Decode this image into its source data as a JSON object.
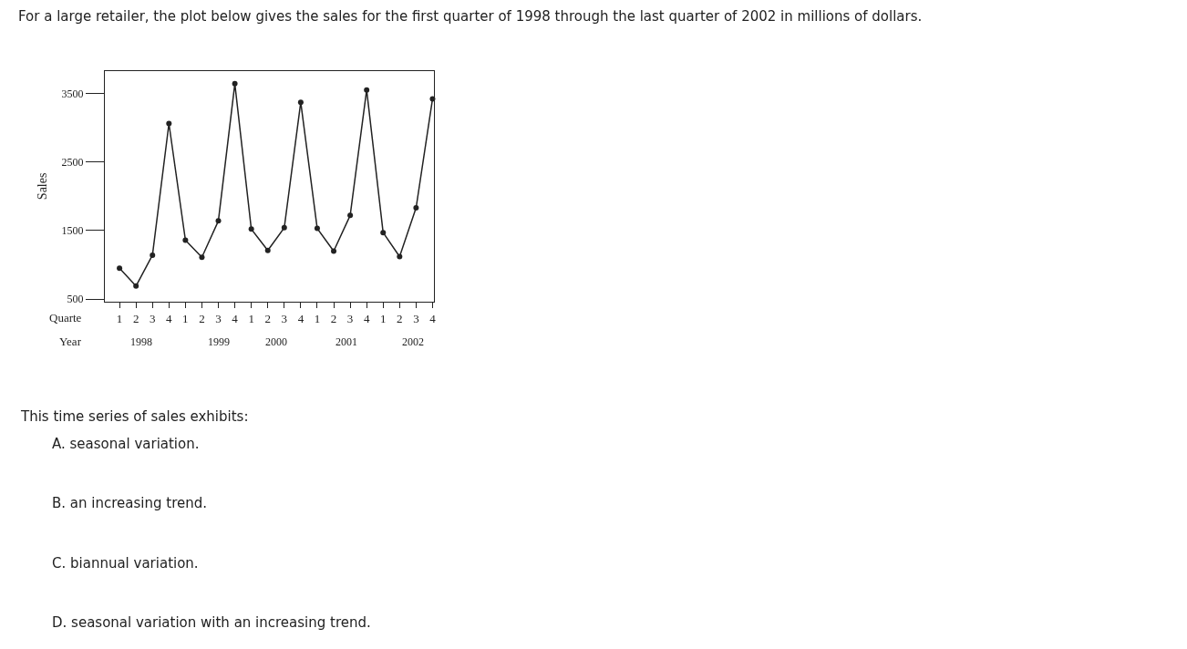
{
  "chart_data": {
    "type": "line",
    "title": "For a large retailer, the plot below gives the sales for the first quarter of 1998 through the last quarter of 2002 in millions of dollars.",
    "ylabel": "Sales",
    "categories": [
      "1",
      "2",
      "3",
      "4",
      "1",
      "2",
      "3",
      "4",
      "1",
      "2",
      "3",
      "4",
      "1",
      "2",
      "3",
      "4",
      "1",
      "2",
      "3",
      "4"
    ],
    "series": [
      {
        "color": "#222222",
        "values": [
          950,
          690,
          1140,
          3060,
          1360,
          1110,
          1640,
          3640,
          1520,
          1210,
          1540,
          3370,
          1530,
          1200,
          1720,
          3550,
          1470,
          1120,
          1830,
          3420
        ]
      }
    ],
    "ylim": [
      460,
      3830
    ],
    "yticks": [
      500,
      1500,
      2500,
      3500
    ],
    "legend": false,
    "marker": "circle",
    "line_style": "solid",
    "annotations": [
      "Quarte",
      "Year",
      "1998",
      "1999",
      "2000",
      "2001",
      "2002",
      "This time series of sales exhibits:",
      "A. seasonal variation.",
      "B. an increasing trend.",
      "C. biannual variation.",
      "D. seasonal variation with an increasing trend."
    ]
  }
}
